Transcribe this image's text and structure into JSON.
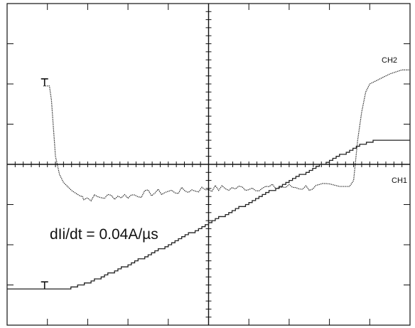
{
  "chart_data": {
    "type": "line",
    "title": "",
    "xlabel": "",
    "ylabel": "",
    "grid": "oscilloscope graticule 10 x 8 divisions with center-axis minor ticks",
    "axis_ranges": {
      "x": [
        0,
        10
      ],
      "y": [
        0,
        8
      ]
    },
    "series": [
      {
        "name": "CH2",
        "color": "#222222",
        "style": "dotted",
        "x": [
          0.9,
          1.05,
          1.1,
          1.15,
          1.2,
          1.3,
          1.4,
          1.6,
          1.8,
          2.0,
          2.5,
          3.0,
          3.5,
          4.0,
          4.5,
          5.0,
          5.5,
          6.0,
          6.5,
          7.0,
          7.5,
          8.0,
          8.5,
          8.6,
          8.7,
          8.8,
          8.9,
          9.0,
          9.2,
          9.5,
          9.8,
          10.0
        ],
        "y": [
          5.95,
          5.95,
          5.6,
          4.9,
          4.2,
          3.75,
          3.55,
          3.35,
          3.22,
          3.16,
          3.2,
          3.22,
          3.28,
          3.32,
          3.35,
          3.4,
          3.4,
          3.42,
          3.42,
          3.44,
          3.42,
          3.45,
          3.45,
          3.6,
          4.6,
          5.3,
          5.8,
          6.0,
          6.1,
          6.25,
          6.35,
          6.35
        ]
      },
      {
        "name": "CH1",
        "color": "#222222",
        "style": "staircase",
        "x": [
          0.0,
          1.5,
          2.0,
          3.0,
          4.0,
          5.0,
          6.0,
          7.0,
          8.0,
          8.9,
          9.2,
          10.0
        ],
        "y": [
          0.9,
          0.9,
          1.05,
          1.5,
          2.0,
          2.55,
          3.05,
          3.6,
          4.1,
          4.55,
          4.62,
          4.62
        ]
      }
    ],
    "markers": [
      {
        "symbol": "T",
        "x": 0.93,
        "y": 5.95
      },
      {
        "symbol": "T",
        "x": 0.93,
        "y": 0.9
      }
    ],
    "annotation": "dIi/dt = 0.04A/µs"
  }
}
